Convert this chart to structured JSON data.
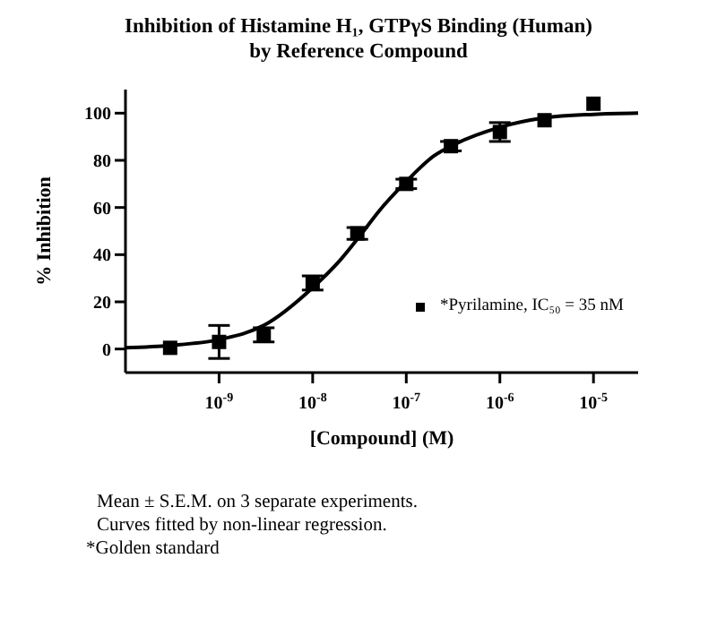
{
  "chart_data": {
    "type": "scatter",
    "title": "Inhibition of Histamine H₁, GTPγS Binding (Human)\nby Reference Compound",
    "xlabel": "[Compound] (M)",
    "ylabel": "% Inhibition",
    "log": "x",
    "xlim": [
      1e-10,
      3e-05
    ],
    "xticks": [
      {
        "value": 1e-09,
        "label": "10$^{-9}$"
      },
      {
        "value": 1e-08,
        "label": "10$^{-8}$"
      },
      {
        "value": 1e-07,
        "label": "10$^{-7}$"
      },
      {
        "value": 1e-06,
        "label": "10$^{-6}$"
      },
      {
        "value": 1e-05,
        "label": "10$^{-5}$"
      }
    ],
    "ylim": [
      -10,
      110
    ],
    "yticks": [
      0,
      20,
      40,
      60,
      80,
      100
    ],
    "grid": false,
    "legend": "right",
    "series": [
      {
        "name": "*Pyrilamine, IC₅₀ = 35 nM",
        "marker": "square",
        "color": "#000000",
        "x": [
          3e-10,
          1e-09,
          3e-09,
          1e-08,
          3e-08,
          1e-07,
          3e-07,
          1e-06,
          3e-06,
          1e-05
        ],
        "values": [
          0.5,
          3,
          6,
          28,
          49,
          70,
          86,
          92,
          97,
          104
        ],
        "errors": [
          null,
          7,
          3,
          3,
          2.5,
          2,
          2,
          4,
          null,
          null
        ]
      },
      {
        "type": "line",
        "marker": "none",
        "line_style": "solid",
        "color": "#000000",
        "x": [
          1e-10,
          3e-10,
          1e-09,
          3e-09,
          1e-08,
          2e-08,
          3.5e-08,
          5e-08,
          1e-07,
          2e-07,
          3e-07,
          1e-06,
          3e-06,
          1e-05,
          3e-05
        ],
        "values": [
          0.5,
          1.5,
          4,
          10,
          26,
          38,
          50,
          58,
          71,
          82,
          86,
          94,
          98,
          99.5,
          100
        ]
      }
    ],
    "annotations": [
      "Mean ± S.E.M. on 3 separate experiments.",
      "Curves fitted by non-linear regression.",
      "*Golden standard"
    ]
  }
}
